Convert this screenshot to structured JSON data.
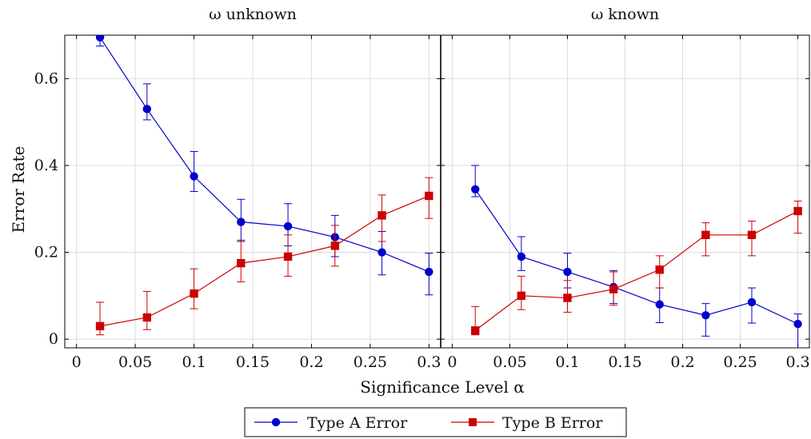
{
  "chart_data": {
    "type": "line",
    "ylabel": "Error Rate",
    "xlabel": "Significance Level α",
    "x_ticks": [
      "0",
      "0.05",
      "0.1",
      "0.15",
      "0.2",
      "0.25",
      "0.3"
    ],
    "y_ticks": [
      "0",
      "0.2",
      "0.4",
      "0.6"
    ],
    "xlim": [
      -0.01,
      0.31
    ],
    "ylim": [
      -0.02,
      0.7
    ],
    "grid": true,
    "legend": {
      "placement": "bottom-center",
      "entries": [
        "Type A Error",
        "Type B Error"
      ]
    },
    "colors": {
      "type_a": "#0000cc",
      "type_b": "#cc0000",
      "grid": "#dddddd"
    },
    "panels": [
      {
        "title": "ω unknown",
        "x": [
          0.02,
          0.06,
          0.1,
          0.14,
          0.18,
          0.22,
          0.26,
          0.3
        ],
        "series": [
          {
            "name": "Type A Error",
            "marker": "circle",
            "values": [
              0.695,
              0.53,
              0.375,
              0.27,
              0.26,
              0.235,
              0.2,
              0.155
            ],
            "err_low": [
              0.675,
              0.505,
              0.34,
              0.225,
              0.215,
              0.19,
              0.148,
              0.102
            ],
            "err_high": [
              0.705,
              0.588,
              0.432,
              0.322,
              0.312,
              0.285,
              0.248,
              0.198
            ]
          },
          {
            "name": "Type B Error",
            "marker": "square",
            "values": [
              0.03,
              0.05,
              0.105,
              0.175,
              0.19,
              0.215,
              0.285,
              0.33
            ],
            "err_low": [
              0.01,
              0.022,
              0.07,
              0.132,
              0.145,
              0.168,
              0.225,
              0.278
            ],
            "err_high": [
              0.085,
              0.11,
              0.162,
              0.228,
              0.24,
              0.262,
              0.332,
              0.372
            ]
          }
        ]
      },
      {
        "title": "ω known",
        "x": [
          0.02,
          0.06,
          0.1,
          0.14,
          0.18,
          0.22,
          0.26,
          0.3
        ],
        "series": [
          {
            "name": "Type A Error",
            "marker": "circle",
            "values": [
              0.345,
              0.19,
              0.155,
              0.12,
              0.08,
              0.055,
              0.085,
              0.035
            ],
            "err_low": [
              0.328,
              0.158,
              0.118,
              0.082,
              0.038,
              0.007,
              0.037,
              -0.02
            ],
            "err_high": [
              0.4,
              0.236,
              0.198,
              0.158,
              0.118,
              0.082,
              0.118,
              0.058
            ]
          },
          {
            "name": "Type B Error",
            "marker": "square",
            "values": [
              0.02,
              0.1,
              0.095,
              0.115,
              0.16,
              0.24,
              0.24,
              0.295
            ],
            "err_low": [
              0.01,
              0.068,
              0.062,
              0.078,
              0.118,
              0.192,
              0.192,
              0.244
            ],
            "err_high": [
              0.075,
              0.145,
              0.135,
              0.155,
              0.192,
              0.268,
              0.272,
              0.318
            ]
          }
        ]
      }
    ]
  }
}
